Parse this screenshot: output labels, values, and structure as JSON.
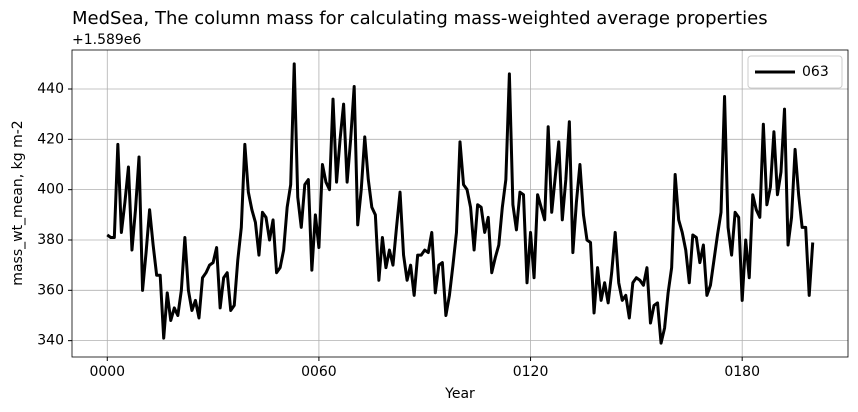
{
  "chart_data": {
    "type": "line",
    "title": "MedSea, The column mass for calculating mass-weighted average properties",
    "offset_text": "+1.589e6",
    "xlabel": "Year",
    "ylabel": "mass_wt_mean, kg m-2",
    "x": [
      0,
      1,
      2,
      3,
      4,
      5,
      6,
      7,
      8,
      9,
      10,
      11,
      12,
      13,
      14,
      15,
      16,
      17,
      18,
      19,
      20,
      21,
      22,
      23,
      24,
      25,
      26,
      27,
      28,
      29,
      30,
      31,
      32,
      33,
      34,
      35,
      36,
      37,
      38,
      39,
      40,
      41,
      42,
      43,
      44,
      45,
      46,
      47,
      48,
      49,
      50,
      51,
      52,
      53,
      54,
      55,
      56,
      57,
      58,
      59,
      60,
      61,
      62,
      63,
      64,
      65,
      66,
      67,
      68,
      69,
      70,
      71,
      72,
      73,
      74,
      75,
      76,
      77,
      78,
      79,
      80,
      81,
      82,
      83,
      84,
      85,
      86,
      87,
      88,
      89,
      90,
      91,
      92,
      93,
      94,
      95,
      96,
      97,
      98,
      99,
      100,
      101,
      102,
      103,
      104,
      105,
      106,
      107,
      108,
      109,
      110,
      111,
      112,
      113,
      114,
      115,
      116,
      117,
      118,
      119,
      120,
      121,
      122,
      123,
      124,
      125,
      126,
      127,
      128,
      129,
      130,
      131,
      132,
      133,
      134,
      135,
      136,
      137,
      138,
      139,
      140,
      141,
      142,
      143,
      144,
      145,
      146,
      147,
      148,
      149,
      150,
      151,
      152,
      153,
      154,
      155,
      156,
      157,
      158,
      159,
      160,
      161,
      162,
      163,
      164,
      165,
      166,
      167,
      168,
      169,
      170,
      171,
      172,
      173,
      174,
      175,
      176,
      177,
      178,
      179,
      180,
      181,
      182,
      183,
      184,
      185,
      186,
      187,
      188,
      189,
      190,
      191,
      192,
      193,
      194,
      195,
      196,
      197,
      198,
      199,
      200
    ],
    "series": [
      {
        "name": "063",
        "color": "#000000",
        "values": [
          382,
          381,
          381,
          418,
          383,
          395,
          409,
          376,
          392,
          413,
          360,
          375,
          392,
          378,
          366,
          366,
          341,
          359,
          348,
          353,
          350,
          360,
          381,
          360,
          352,
          356,
          349,
          365,
          367,
          370,
          371,
          377,
          353,
          365,
          367,
          352,
          354,
          372,
          385,
          418,
          399,
          392,
          387,
          374,
          391,
          389,
          380,
          388,
          367,
          369,
          376,
          393,
          402,
          450,
          397,
          385,
          402,
          404,
          368,
          390,
          377,
          410,
          403,
          400,
          436,
          403,
          420,
          434,
          403,
          420,
          441,
          386,
          400,
          421,
          404,
          393,
          390,
          364,
          381,
          369,
          376,
          370,
          385,
          399,
          374,
          364,
          370,
          358,
          374,
          374,
          376,
          375,
          383,
          359,
          370,
          371,
          350,
          358,
          370,
          383,
          419,
          402,
          400,
          393,
          376,
          394,
          393,
          383,
          389,
          367,
          373,
          378,
          393,
          404,
          446,
          394,
          384,
          399,
          398,
          363,
          383,
          365,
          398,
          393,
          388,
          425,
          391,
          405,
          419,
          388,
          404,
          427,
          375,
          395,
          410,
          390,
          380,
          379,
          351,
          369,
          356,
          363,
          355,
          367,
          383,
          363,
          356,
          358,
          349,
          363,
          365,
          364,
          362,
          369,
          347,
          354,
          355,
          339,
          345,
          359,
          369,
          406,
          388,
          383,
          376,
          363,
          382,
          381,
          371,
          378,
          358,
          362,
          372,
          382,
          391,
          437,
          385,
          374,
          391,
          389,
          356,
          380,
          365,
          398,
          392,
          389,
          426,
          394,
          401,
          423,
          398,
          407,
          432,
          378,
          389,
          416,
          398,
          385,
          385,
          358,
          379
        ]
      }
    ],
    "xlim": [
      -10,
      210
    ],
    "ylim": [
      333.5,
      455.5
    ],
    "xticks": [
      {
        "value": 0,
        "label": "0000"
      },
      {
        "value": 60,
        "label": "0060"
      },
      {
        "value": 120,
        "label": "0120"
      },
      {
        "value": 180,
        "label": "0180"
      }
    ],
    "yticks": [
      340,
      360,
      380,
      400,
      420,
      440
    ],
    "grid": true,
    "legend": "upper right"
  }
}
